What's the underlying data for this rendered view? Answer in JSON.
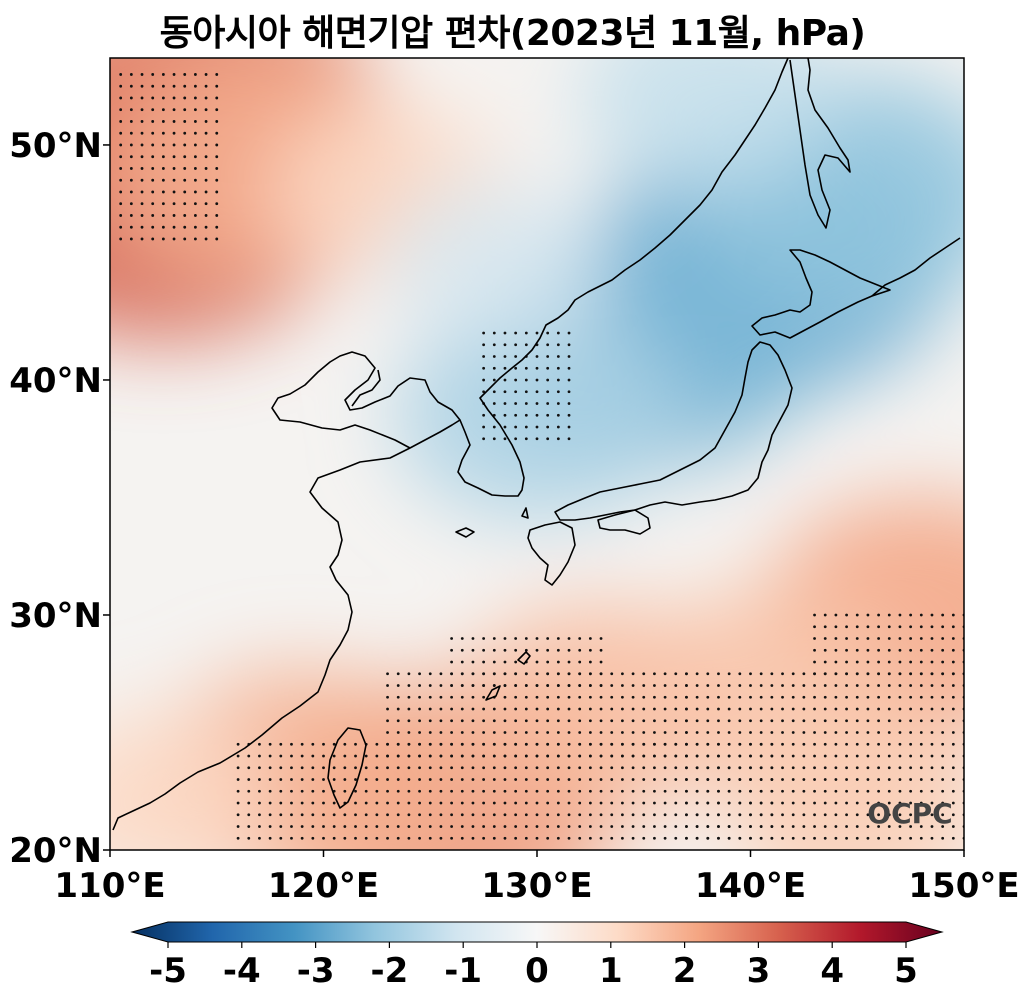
{
  "title": "동아시아 해면기압 편차(2023년 11월, hPa)",
  "logo_text": "OCPC",
  "map": {
    "lon_range": [
      110,
      150
    ],
    "lat_range": [
      20,
      53.7
    ],
    "x_ticks": [
      {
        "value": 110,
        "label": "110°E"
      },
      {
        "value": 120,
        "label": "120°E"
      },
      {
        "value": 130,
        "label": "130°E"
      },
      {
        "value": 140,
        "label": "140°E"
      },
      {
        "value": 150,
        "label": "150°E"
      }
    ],
    "y_ticks": [
      {
        "value": 20,
        "label": "20°N"
      },
      {
        "value": 30,
        "label": "30°N"
      },
      {
        "value": 40,
        "label": "40°N"
      },
      {
        "value": 50,
        "label": "50°N"
      }
    ]
  },
  "colorbar": {
    "min": -5,
    "max": 5,
    "extend": "both",
    "ticks": [
      {
        "value": -5,
        "label": "-5"
      },
      {
        "value": -4,
        "label": "-4"
      },
      {
        "value": -3,
        "label": "-3"
      },
      {
        "value": -2,
        "label": "-2"
      },
      {
        "value": -1,
        "label": "-1"
      },
      {
        "value": 0,
        "label": "0"
      },
      {
        "value": 1,
        "label": "1"
      },
      {
        "value": 2,
        "label": "2"
      },
      {
        "value": 3,
        "label": "3"
      },
      {
        "value": 4,
        "label": "4"
      },
      {
        "value": 5,
        "label": "5"
      }
    ],
    "colors": [
      "#053061",
      "#2166ac",
      "#4393c3",
      "#92c5de",
      "#d1e5f0",
      "#f7f7f7",
      "#fddbc7",
      "#f4a582",
      "#d6604d",
      "#b2182b",
      "#67001f"
    ]
  },
  "anomaly_centers": [
    {
      "lon": 112.5,
      "lat": 48.0,
      "value": 3.0
    },
    {
      "lon": 114.0,
      "lat": 51.5,
      "value": 2.6
    },
    {
      "lon": 117.0,
      "lat": 49.0,
      "value": 1.8
    },
    {
      "lon": 123.0,
      "lat": 48.0,
      "value": 1.0
    },
    {
      "lon": 141.0,
      "lat": 45.0,
      "value": -2.5
    },
    {
      "lon": 135.0,
      "lat": 41.5,
      "value": -2.3
    },
    {
      "lon": 145.0,
      "lat": 48.0,
      "value": -2.0
    },
    {
      "lon": 130.0,
      "lat": 38.5,
      "value": -1.6
    },
    {
      "lon": 138.0,
      "lat": 52.0,
      "value": -1.2
    },
    {
      "lon": 128.0,
      "lat": 45.0,
      "value": -0.8
    },
    {
      "lon": 126.0,
      "lat": 22.0,
      "value": 2.2
    },
    {
      "lon": 119.0,
      "lat": 23.0,
      "value": 1.8
    },
    {
      "lon": 133.0,
      "lat": 26.0,
      "value": 1.6
    },
    {
      "lon": 148.0,
      "lat": 30.0,
      "value": 2.0
    },
    {
      "lon": 141.0,
      "lat": 27.0,
      "value": 1.4
    },
    {
      "lon": 112.0,
      "lat": 22.0,
      "value": 1.0
    },
    {
      "lon": 145.0,
      "lat": 22.0,
      "value": 1.3
    }
  ],
  "significance_regions": [
    {
      "lon": [
        110.3,
        115.2
      ],
      "lat": [
        46.0,
        53.4
      ]
    },
    {
      "lon": [
        127.5,
        131.5
      ],
      "lat": [
        37.5,
        42.0
      ]
    },
    {
      "lon": [
        126.0,
        133.0
      ],
      "lat": [
        27.0,
        29.3
      ]
    },
    {
      "lon": [
        123.0,
        137.0
      ],
      "lat": [
        24.0,
        27.8
      ]
    },
    {
      "lon": [
        116.0,
        141.0
      ],
      "lat": [
        20.3,
        24.5
      ]
    },
    {
      "lon": [
        137.0,
        150.0
      ],
      "lat": [
        20.3,
        27.8
      ]
    },
    {
      "lon": [
        143.0,
        150.0
      ],
      "lat": [
        27.5,
        30.3
      ]
    }
  ]
}
